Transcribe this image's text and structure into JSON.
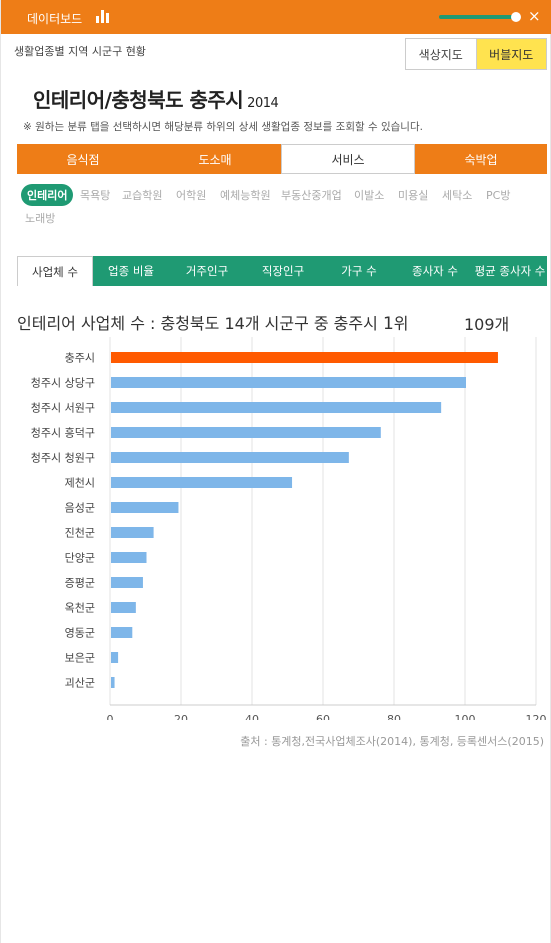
{
  "header": {
    "title": "데이터보드",
    "close_symbol": "×"
  },
  "subtitle": "생활업종별 지역 시군구 현황",
  "map_toggle": {
    "color_map": "색상지도",
    "bubble_map": "버블지도"
  },
  "page_title": {
    "main": "인테리어/충청북도 충주시",
    "year": "2014"
  },
  "notice": "※ 원하는 분류 탭을 선택하시면 해당분류 하위의 상세 생활업종 정보를 조회할 수 있습니다.",
  "category_tabs": [
    "음식점",
    "도소매",
    "서비스",
    "숙박업"
  ],
  "active_category": "서비스",
  "sub_tabs": [
    "인테리어",
    "목욕탕",
    "교습학원",
    "어학원",
    "예체능학원",
    "부동산중개업",
    "이발소",
    "미용실",
    "세탁소",
    "PC방",
    "노래방"
  ],
  "active_sub_tab": "인테리어",
  "metric_tabs": [
    "사업체 수",
    "업종 비율",
    "거주인구",
    "직장인구",
    "가구 수",
    "종사자 수",
    "평균 종사자 수"
  ],
  "active_metric": "사업체 수",
  "rank": {
    "prefix": "인테리어 사업체 수 : 충청북도 14개 시군구 중 충주시",
    "number": "1",
    "suffix": "위",
    "value": "109개"
  },
  "chart_data": {
    "type": "bar",
    "orientation": "horizontal",
    "categories": [
      "충주시",
      "청주시 상당구",
      "청주시 서원구",
      "청주시 흥덕구",
      "청주시 청원구",
      "제천시",
      "음성군",
      "진천군",
      "단양군",
      "증평군",
      "옥천군",
      "영동군",
      "보은군",
      "괴산군"
    ],
    "values": [
      109,
      100,
      93,
      76,
      67,
      51,
      19,
      12,
      10,
      9,
      7,
      6,
      2,
      1
    ],
    "highlight": "충주시",
    "xlim": [
      0,
      120
    ],
    "xticks": [
      "0",
      "20",
      "40",
      "60",
      "80",
      "100",
      "120"
    ],
    "grid": true,
    "colors": {
      "highlight": "#ff5a00",
      "default": "#7eb6e9",
      "grid": "#e3e3e3"
    }
  },
  "source": "출처 : 통계청,전국사업체조사(2014), 통계청, 등록센서스(2015)",
  "colors": {
    "header": "#ee7d17",
    "accent_green": "#1f9a73",
    "toggle_active": "#ffe34f"
  }
}
